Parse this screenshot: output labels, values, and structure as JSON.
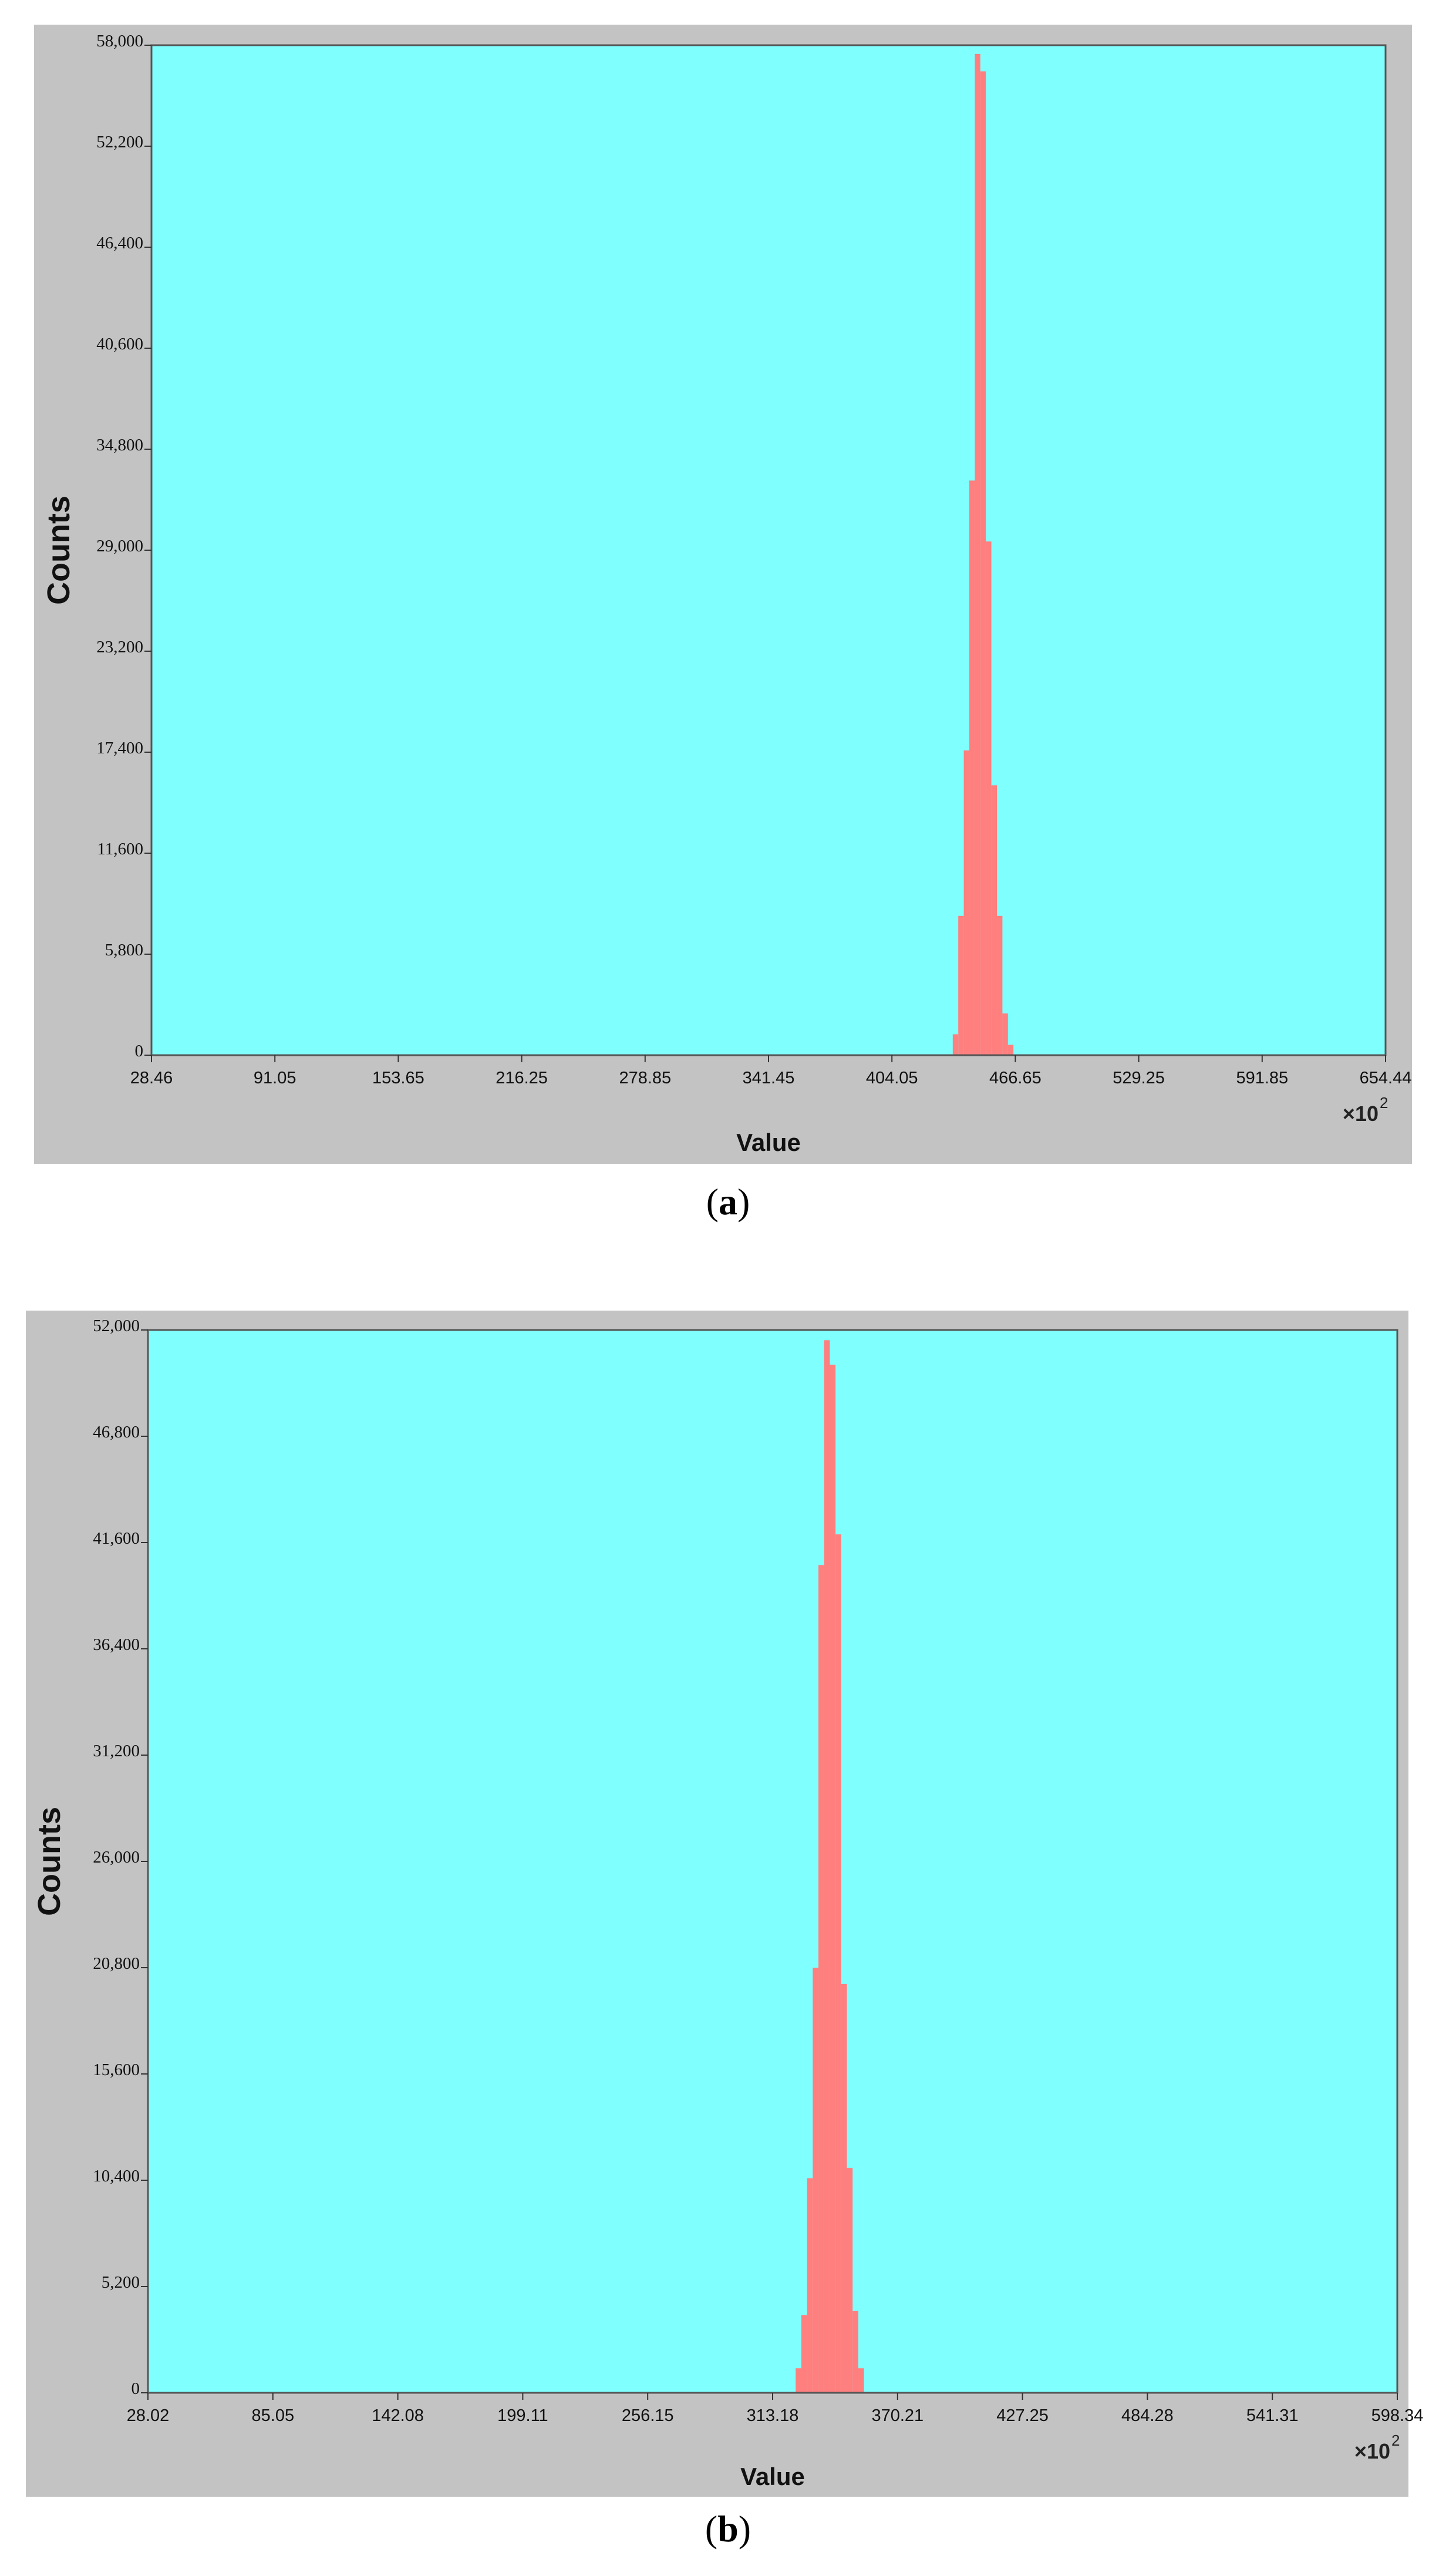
{
  "colors": {
    "plot_background": "#80ffff",
    "bars": "#ff7f7f",
    "frame": "#c3c3c3"
  },
  "chart_data": [
    {
      "panel": "a",
      "caption_open": "(",
      "caption_letter": "a",
      "caption_close": ")",
      "type": "bar",
      "xlabel": "Value",
      "ylabel": "Counts",
      "x_multiplier": "×10",
      "x_multiplier_exp": "2",
      "x_ticks": [
        "28.46",
        "91.05",
        "153.65",
        "216.25",
        "278.85",
        "341.45",
        "404.05",
        "466.65",
        "529.25",
        "591.85",
        "654.44"
      ],
      "y_ticks": [
        "0",
        "5,800",
        "11,600",
        "17,400",
        "23,200",
        "29,000",
        "34,800",
        "40,600",
        "46,400",
        "52,200",
        "58,000"
      ],
      "xlim": [
        28.46,
        654.44
      ],
      "ylim": [
        0,
        58000
      ],
      "bin_width": 2.8,
      "x": [
        434.9,
        437.7,
        440.5,
        443.3,
        446.1,
        448.9,
        451.7,
        454.5,
        457.3,
        460.1,
        462.9
      ],
      "values": [
        1200,
        8000,
        17500,
        33000,
        57500,
        56500,
        29500,
        15500,
        8000,
        2400,
        600
      ]
    },
    {
      "panel": "b",
      "caption_open": "(",
      "caption_letter": "b",
      "caption_close": ")",
      "type": "bar",
      "xlabel": "Value",
      "ylabel": "Counts",
      "x_multiplier": "×10",
      "x_multiplier_exp": "2",
      "x_ticks": [
        "28.02",
        "85.05",
        "142.08",
        "199.11",
        "256.15",
        "313.18",
        "370.21",
        "427.25",
        "484.28",
        "541.31",
        "598.34"
      ],
      "y_ticks": [
        "0",
        "5,200",
        "10,400",
        "15,600",
        "20,800",
        "26,000",
        "31,200",
        "36,400",
        "41,600",
        "46,800",
        "52,000"
      ],
      "xlim": [
        28.02,
        598.34
      ],
      "ylim": [
        0,
        52000
      ],
      "bin_width": 2.6,
      "x": [
        323.7,
        326.3,
        328.9,
        331.5,
        334.1,
        336.7,
        339.3,
        341.9,
        344.5,
        347.1,
        349.7,
        352.3
      ],
      "values": [
        1200,
        3800,
        10500,
        20800,
        40500,
        51500,
        50300,
        42000,
        20000,
        11000,
        4000,
        1200
      ]
    }
  ]
}
